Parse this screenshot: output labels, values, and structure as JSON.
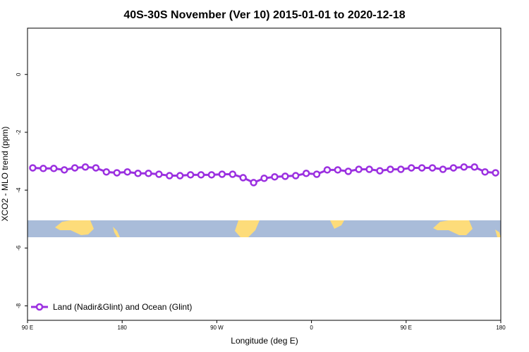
{
  "chart_data": {
    "type": "line",
    "title": "40S-30S November (Ver 10)   2015-01-01 to 2020-12-18",
    "xlabel": "Longitude (deg E)",
    "ylabel": "XCO2 - MLO trend (ppm)",
    "x": [
      95,
      105,
      115,
      125,
      135,
      145,
      155,
      165,
      175,
      185,
      195,
      205,
      215,
      225,
      235,
      245,
      255,
      265,
      275,
      285,
      295,
      305,
      315,
      325,
      335,
      345,
      355,
      365,
      375,
      385,
      395,
      405,
      415,
      425,
      435,
      445,
      455,
      465,
      475,
      485,
      495,
      505,
      515,
      525,
      535
    ],
    "series": [
      {
        "name": "Land (Nadir&Glint) and Ocean (Glint)",
        "color": "#9b30e0",
        "values": [
          -3.23,
          -3.25,
          -3.25,
          -3.3,
          -3.23,
          -3.2,
          -3.23,
          -3.37,
          -3.4,
          -3.37,
          -3.42,
          -3.42,
          -3.45,
          -3.5,
          -3.5,
          -3.47,
          -3.47,
          -3.47,
          -3.45,
          -3.45,
          -3.57,
          -3.74,
          -3.59,
          -3.54,
          -3.52,
          -3.5,
          -3.42,
          -3.45,
          -3.3,
          -3.3,
          -3.35,
          -3.28,
          -3.28,
          -3.33,
          -3.28,
          -3.28,
          -3.23,
          -3.23,
          -3.23,
          -3.28,
          -3.23,
          -3.2,
          -3.2,
          -3.37,
          -3.4
        ]
      }
    ],
    "xlim": [
      90,
      540
    ],
    "xticks": [
      {
        "value": 90,
        "label": "90 E"
      },
      180,
      {
        "value": 270,
        "label": "90 W"
      },
      {
        "value": 360,
        "label": "0"
      },
      {
        "value": 450,
        "label": "90 E"
      },
      {
        "value": 540,
        "label": "180"
      }
    ],
    "ylim": [
      -8.5,
      1.6
    ],
    "yticks": [
      0,
      -2,
      -4,
      -6,
      -8
    ],
    "legend": "bottom-left"
  }
}
